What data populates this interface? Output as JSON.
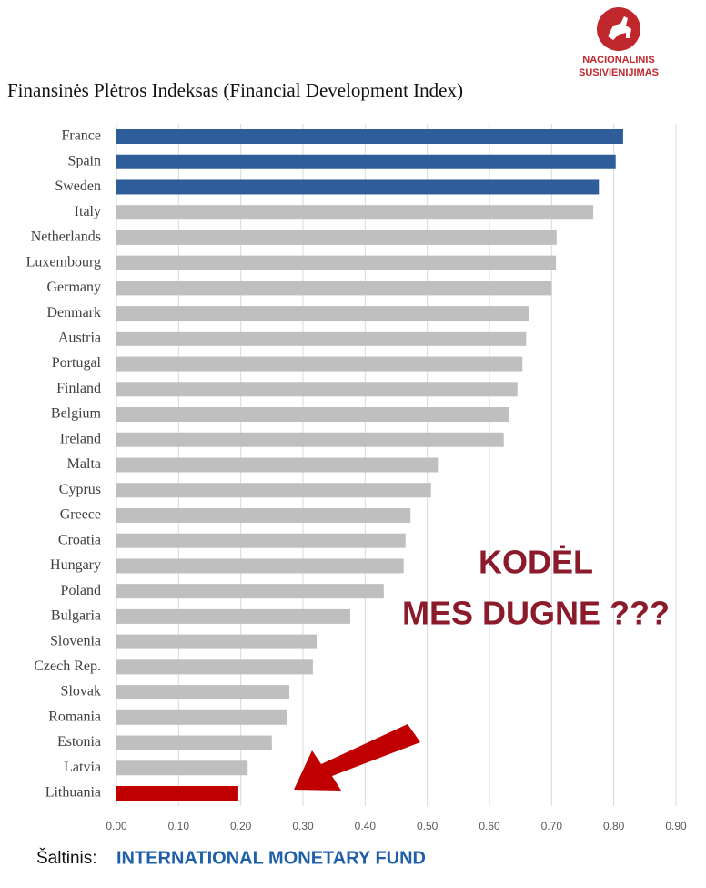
{
  "chart_data": {
    "type": "bar",
    "orientation": "horizontal",
    "title": "Finansinės Plėtros Indeksas (Financial Development Index)",
    "categories": [
      "France",
      "Spain",
      "Sweden",
      "Italy",
      "Netherlands",
      "Luxembourg",
      "Germany",
      "Denmark",
      "Austria",
      "Portugal",
      "Finland",
      "Belgium",
      "Ireland",
      "Malta",
      "Cyprus",
      "Greece",
      "Croatia",
      "Hungary",
      "Poland",
      "Bulgaria",
      "Slovenia",
      "Czech Rep.",
      "Slovak",
      "Romania",
      "Estonia",
      "Latvia",
      "Lithuania"
    ],
    "values": [
      0.815,
      0.803,
      0.776,
      0.767,
      0.708,
      0.707,
      0.7,
      0.664,
      0.659,
      0.653,
      0.645,
      0.632,
      0.623,
      0.517,
      0.506,
      0.473,
      0.465,
      0.462,
      0.43,
      0.376,
      0.322,
      0.316,
      0.278,
      0.274,
      0.25,
      0.211,
      0.196
    ],
    "colors": [
      "#2e5d9a",
      "#2e5d9a",
      "#2e5d9a",
      "#bfbfbf",
      "#bfbfbf",
      "#bfbfbf",
      "#bfbfbf",
      "#bfbfbf",
      "#bfbfbf",
      "#bfbfbf",
      "#bfbfbf",
      "#bfbfbf",
      "#bfbfbf",
      "#bfbfbf",
      "#bfbfbf",
      "#bfbfbf",
      "#bfbfbf",
      "#bfbfbf",
      "#bfbfbf",
      "#bfbfbf",
      "#bfbfbf",
      "#bfbfbf",
      "#bfbfbf",
      "#bfbfbf",
      "#bfbfbf",
      "#bfbfbf",
      "#c00000"
    ],
    "xlim": [
      0,
      0.9
    ],
    "xticks": [
      {
        "value": 0,
        "label": "0.00"
      },
      {
        "value": 0.1,
        "label": "0.10"
      },
      {
        "value": 0.2,
        "label": "0.20"
      },
      {
        "value": 0.3,
        "label": "0.30"
      },
      {
        "value": 0.4,
        "label": "0.40"
      },
      {
        "value": 0.5,
        "label": "0.50"
      },
      {
        "value": 0.6,
        "label": "0.60"
      },
      {
        "value": 0.7,
        "label": "0.70"
      },
      {
        "value": 0.8,
        "label": "0.80"
      },
      {
        "value": 0.9,
        "label": "0.90"
      }
    ],
    "grid": true,
    "annotations": [
      "KODĖL",
      "MES DUGNE ???"
    ]
  },
  "logo": {
    "line1": "NACIONALINIS",
    "line2": "SUSIVIENIJIMAS"
  },
  "source": {
    "label": "Šaltinis:",
    "name": "INTERNATIONAL MONETARY FUND"
  }
}
